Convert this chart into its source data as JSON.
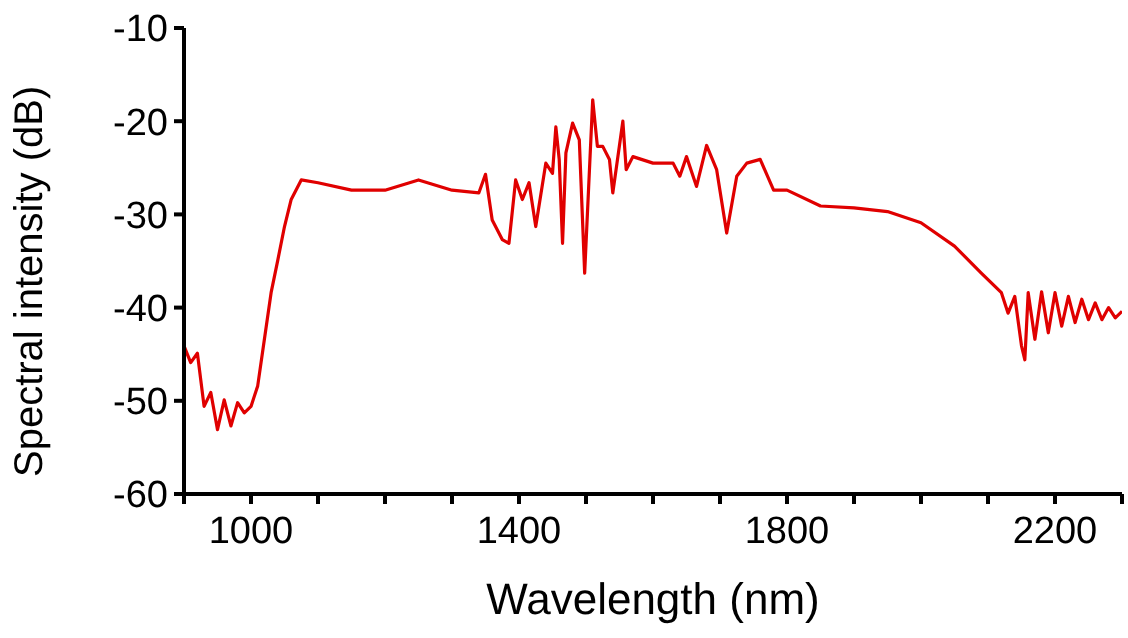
{
  "chart_data": {
    "type": "line",
    "xlabel": "Wavelength (nm)",
    "ylabel": "Spectral intensity (dB)",
    "xlim": [
      900,
      2300
    ],
    "xticks": [
      {
        "value": 900,
        "label": null
      },
      1000,
      {
        "value": 1100,
        "label": null
      },
      {
        "value": 1200,
        "label": null
      },
      {
        "value": 1300,
        "label": null
      },
      1400,
      {
        "value": 1500,
        "label": null
      },
      {
        "value": 1600,
        "label": null
      },
      {
        "value": 1700,
        "label": null
      },
      1800,
      {
        "value": 1900,
        "label": null
      },
      {
        "value": 2000,
        "label": null
      },
      {
        "value": 2100,
        "label": null
      },
      2200,
      {
        "value": 2300,
        "label": null
      }
    ],
    "ylim": [
      -60,
      -10
    ],
    "yticks": [
      -60,
      -50,
      -40,
      -30,
      -20,
      -10
    ],
    "grid": false,
    "legend": false,
    "marker": "none",
    "line_style": "solid",
    "x": [
      900,
      910,
      920,
      930,
      940,
      950,
      960,
      970,
      980,
      990,
      1000,
      1010,
      1020,
      1030,
      1040,
      1050,
      1060,
      1075,
      1100,
      1150,
      1200,
      1250,
      1300,
      1340,
      1350,
      1360,
      1375,
      1385,
      1395,
      1405,
      1415,
      1425,
      1440,
      1450,
      1455,
      1460,
      1465,
      1470,
      1480,
      1490,
      1498,
      1510,
      1517,
      1525,
      1535,
      1540,
      1555,
      1560,
      1570,
      1600,
      1630,
      1640,
      1650,
      1665,
      1680,
      1695,
      1710,
      1725,
      1740,
      1760,
      1780,
      1800,
      1850,
      1900,
      1950,
      2000,
      2050,
      2090,
      2120,
      2130,
      2140,
      2150,
      2155,
      2160,
      2170,
      2180,
      2190,
      2200,
      2210,
      2220,
      2230,
      2240,
      2250,
      2260,
      2270,
      2280,
      2290,
      2300
    ],
    "series": [
      {
        "color": "#e00000",
        "values": [
          -44.1,
          -45.9,
          -44.9,
          -50.6,
          -49.1,
          -53.1,
          -49.9,
          -52.7,
          -50.2,
          -51.3,
          -50.6,
          -48.4,
          -43.4,
          -38.4,
          -34.9,
          -31.3,
          -28.4,
          -26.3,
          -26.6,
          -27.4,
          -27.4,
          -26.3,
          -27.4,
          -27.7,
          -25.7,
          -30.6,
          -32.7,
          -33.1,
          -26.3,
          -28.4,
          -26.6,
          -31.3,
          -24.5,
          -25.6,
          -20.6,
          -24.1,
          -33.1,
          -23.4,
          -20.2,
          -22,
          -36.3,
          -17.7,
          -22.7,
          -22.7,
          -24.1,
          -27.7,
          -20,
          -25.2,
          -23.8,
          -24.5,
          -24.5,
          -25.9,
          -23.8,
          -27,
          -22.6,
          -25.2,
          -32,
          -25.9,
          -24.5,
          -24.1,
          -27.4,
          -27.4,
          -29.1,
          -29.3,
          -29.7,
          -30.9,
          -33.4,
          -36.3,
          -38.4,
          -40.6,
          -38.8,
          -44.1,
          -45.6,
          -38.4,
          -43.4,
          -38.3,
          -42.7,
          -38.4,
          -42,
          -38.8,
          -41.6,
          -39.1,
          -41.3,
          -39.5,
          -41.3,
          -40,
          -41.1,
          -40.4
        ]
      }
    ]
  }
}
